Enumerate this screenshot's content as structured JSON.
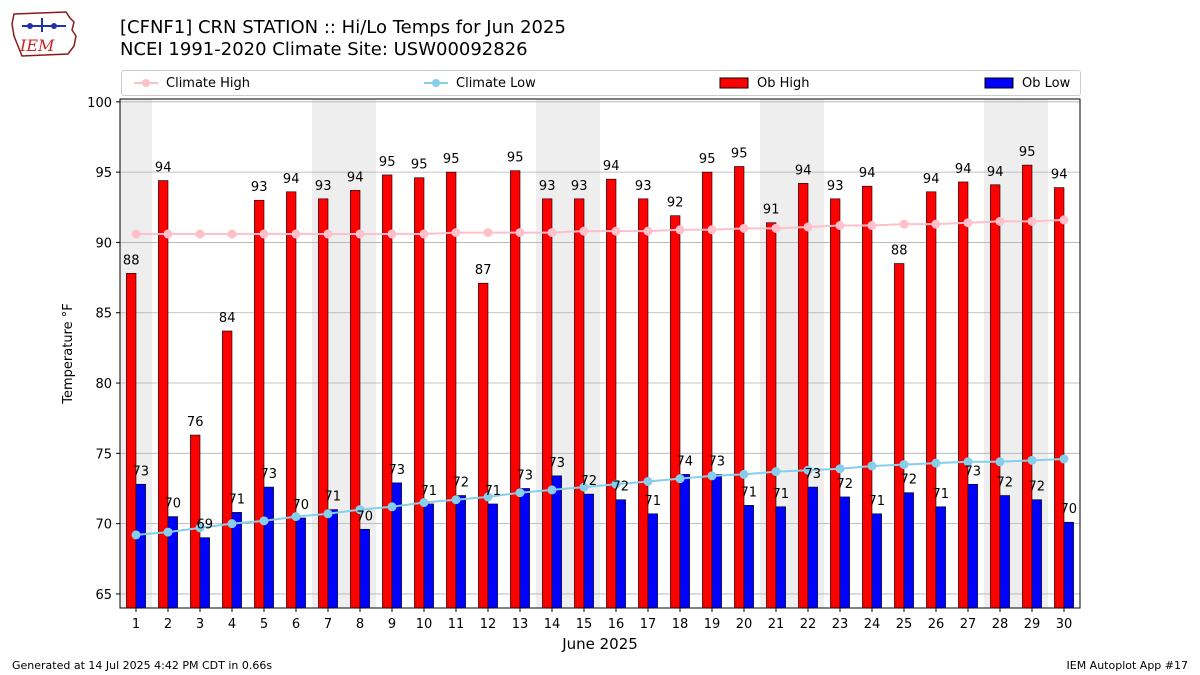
{
  "header": {
    "title_line1": "[CFNF1] CRN STATION :: Hi/Lo Temps for Jun 2025",
    "title_line2": "NCEI 1991-2020 Climate Site: USW00092826",
    "logo_text": "IEM"
  },
  "legend": {
    "climate_high": "Climate High",
    "climate_low": "Climate Low",
    "ob_high": "Ob High",
    "ob_low": "Ob Low"
  },
  "footer": {
    "generated": "Generated at 14 Jul 2025 4:42 PM CDT in 0.66s",
    "app": "IEM Autoplot App #17"
  },
  "colors": {
    "ob_high": "#ff0000",
    "ob_low": "#0000ff",
    "climate_high": "#ffc0cb",
    "climate_low": "#87ceeb",
    "weekend_shade": "#eeeeee",
    "grid": "#b0b0b0"
  },
  "chart_data": {
    "type": "bar",
    "title": "[CFNF1] CRN STATION :: Hi/Lo Temps for Jun 2025",
    "xlabel": "June 2025",
    "ylabel": "Temperature °F",
    "ylim": [
      64,
      100.2
    ],
    "yticks": [
      65,
      70,
      75,
      80,
      85,
      90,
      95,
      100
    ],
    "categories": [
      "1",
      "2",
      "3",
      "4",
      "5",
      "6",
      "7",
      "8",
      "9",
      "10",
      "11",
      "12",
      "13",
      "14",
      "15",
      "16",
      "17",
      "18",
      "19",
      "20",
      "21",
      "22",
      "23",
      "24",
      "25",
      "26",
      "27",
      "28",
      "29",
      "30"
    ],
    "shaded_days": [
      1,
      7,
      8,
      14,
      15,
      21,
      22,
      28,
      29
    ],
    "series": [
      {
        "name": "Ob High",
        "kind": "bar",
        "values": [
          87.8,
          94.4,
          76.3,
          83.7,
          93.0,
          93.6,
          93.1,
          93.7,
          94.8,
          94.6,
          95.0,
          87.1,
          95.1,
          93.1,
          93.1,
          94.5,
          93.1,
          91.9,
          95.0,
          95.4,
          91.4,
          94.2,
          93.1,
          94.0,
          88.5,
          93.6,
          94.3,
          94.1,
          95.5,
          93.9
        ],
        "labels": [
          88,
          94,
          76,
          84,
          93,
          94,
          93,
          94,
          95,
          95,
          95,
          87,
          95,
          93,
          93,
          94,
          93,
          92,
          95,
          95,
          91,
          94,
          93,
          94,
          88,
          94,
          94,
          94,
          95,
          94
        ]
      },
      {
        "name": "Ob Low",
        "kind": "bar",
        "values": [
          72.8,
          70.5,
          69.0,
          70.8,
          72.6,
          70.4,
          71.0,
          69.6,
          72.9,
          71.4,
          72.0,
          71.4,
          72.5,
          73.4,
          72.1,
          71.7,
          70.7,
          73.5,
          73.5,
          71.3,
          71.2,
          72.6,
          71.9,
          70.7,
          72.2,
          71.2,
          72.8,
          72.0,
          71.7,
          70.1
        ],
        "labels": [
          73,
          70,
          69,
          71,
          73,
          70,
          71,
          70,
          73,
          71,
          72,
          71,
          73,
          73,
          72,
          72,
          71,
          74,
          73,
          71,
          71,
          73,
          72,
          71,
          72,
          71,
          73,
          72,
          72,
          70
        ]
      },
      {
        "name": "Climate High",
        "kind": "line",
        "values": [
          90.6,
          90.6,
          90.6,
          90.6,
          90.6,
          90.6,
          90.6,
          90.6,
          90.6,
          90.6,
          90.7,
          90.7,
          90.7,
          90.7,
          90.8,
          90.8,
          90.8,
          90.9,
          90.9,
          91.0,
          91.0,
          91.1,
          91.2,
          91.2,
          91.3,
          91.3,
          91.4,
          91.5,
          91.5,
          91.6
        ]
      },
      {
        "name": "Climate Low",
        "kind": "line",
        "values": [
          69.2,
          69.4,
          69.7,
          70.0,
          70.2,
          70.5,
          70.7,
          71.0,
          71.2,
          71.5,
          71.7,
          71.9,
          72.2,
          72.4,
          72.6,
          72.8,
          73.0,
          73.2,
          73.4,
          73.5,
          73.7,
          73.8,
          73.9,
          74.1,
          74.2,
          74.3,
          74.4,
          74.4,
          74.5,
          74.6
        ]
      }
    ]
  }
}
